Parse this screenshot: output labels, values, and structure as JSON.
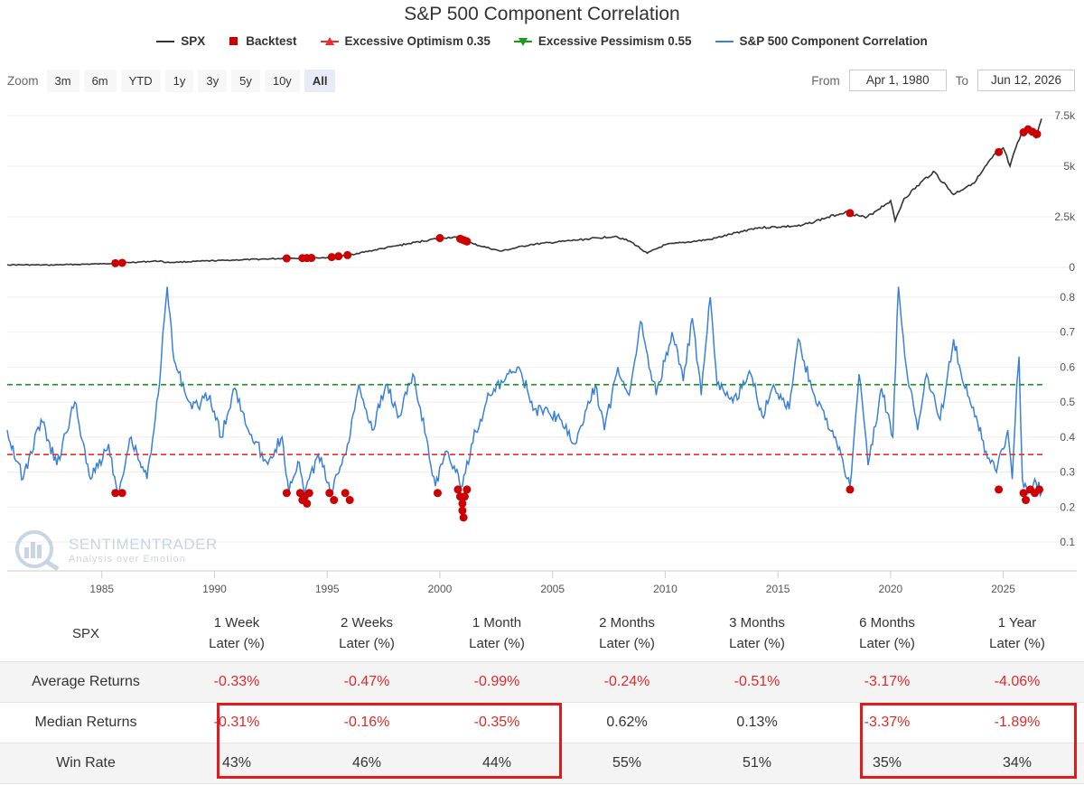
{
  "title": "S&P 500 Component Correlation",
  "legend": [
    {
      "label": "SPX",
      "color": "#333333",
      "symbol": "line"
    },
    {
      "label": "Backtest",
      "color": "#cc0000",
      "symbol": "square"
    },
    {
      "label": "Excessive Optimism 0.35",
      "color": "#ee2a2a",
      "symbol": "triangle-up"
    },
    {
      "label": "Excessive Pessimism 0.55",
      "color": "#1a9a1a",
      "symbol": "triangle-down"
    },
    {
      "label": "S&P 500 Component Correlation",
      "color": "#3a80d9",
      "symbol": "line"
    }
  ],
  "zoom": {
    "label": "Zoom",
    "buttons": [
      "3m",
      "6m",
      "YTD",
      "1y",
      "3y",
      "5y",
      "10y",
      "All"
    ],
    "active": "All"
  },
  "range": {
    "from_label": "From",
    "from_value": "Apr 1, 1980",
    "to_label": "To",
    "to_value": "Jun 12, 2026"
  },
  "watermark": {
    "name": "SENTIMENTRADER",
    "tagline": "Analysis over Emotion"
  },
  "chart_data": {
    "type": "line",
    "x_range": [
      1980.8,
      2026.9
    ],
    "x_ticks": [
      "1985",
      "1990",
      "1995",
      "2000",
      "2005",
      "2010",
      "2015",
      "2020",
      "2025"
    ],
    "spx_axis": {
      "range": [
        0,
        7500
      ],
      "ticks": [
        "0",
        "2.5k",
        "5k",
        "7.5k"
      ]
    },
    "corr_axis": {
      "range": [
        0.05,
        0.82
      ],
      "ticks": [
        "0.1",
        "0.2",
        "0.3",
        "0.4",
        "0.5",
        "0.6",
        "0.7",
        "0.8"
      ]
    },
    "optimism_threshold": 0.35,
    "pessimism_threshold": 0.55,
    "spx_series": [
      [
        1980.8,
        130
      ],
      [
        1982.6,
        115
      ],
      [
        1985.0,
        175
      ],
      [
        1987.6,
        320
      ],
      [
        1987.85,
        240
      ],
      [
        1990.5,
        350
      ],
      [
        1993.0,
        440
      ],
      [
        1995.0,
        480
      ],
      [
        1996.0,
        620
      ],
      [
        1998.0,
        1050
      ],
      [
        2000.0,
        1450
      ],
      [
        2000.7,
        1500
      ],
      [
        2001.5,
        1150
      ],
      [
        2002.7,
        800
      ],
      [
        2004.0,
        1120
      ],
      [
        2007.8,
        1540
      ],
      [
        2008.5,
        1250
      ],
      [
        2009.2,
        700
      ],
      [
        2010.0,
        1120
      ],
      [
        2012.0,
        1380
      ],
      [
        2014.0,
        1950
      ],
      [
        2016.0,
        2050
      ],
      [
        2018.0,
        2750
      ],
      [
        2018.9,
        2450
      ],
      [
        2020.0,
        3300
      ],
      [
        2020.2,
        2300
      ],
      [
        2020.6,
        3400
      ],
      [
        2021.9,
        4750
      ],
      [
        2022.8,
        3600
      ],
      [
        2023.8,
        4300
      ],
      [
        2024.5,
        5400
      ],
      [
        2025.0,
        5900
      ],
      [
        2025.3,
        5000
      ],
      [
        2025.8,
        6600
      ],
      [
        2026.2,
        6900
      ],
      [
        2026.45,
        6400
      ],
      [
        2026.7,
        7350
      ]
    ],
    "corr_series": [
      [
        1980.8,
        0.42
      ],
      [
        1981.5,
        0.28
      ],
      [
        1982.3,
        0.45
      ],
      [
        1983.0,
        0.32
      ],
      [
        1983.8,
        0.5
      ],
      [
        1984.5,
        0.28
      ],
      [
        1985.3,
        0.38
      ],
      [
        1985.7,
        0.24
      ],
      [
        1986.3,
        0.4
      ],
      [
        1987.0,
        0.28
      ],
      [
        1987.5,
        0.52
      ],
      [
        1987.9,
        0.83
      ],
      [
        1988.2,
        0.62
      ],
      [
        1989.0,
        0.48
      ],
      [
        1989.8,
        0.52
      ],
      [
        1990.3,
        0.4
      ],
      [
        1990.9,
        0.54
      ],
      [
        1991.5,
        0.42
      ],
      [
        1992.3,
        0.33
      ],
      [
        1993.0,
        0.4
      ],
      [
        1993.3,
        0.24
      ],
      [
        1993.7,
        0.33
      ],
      [
        1994.0,
        0.24
      ],
      [
        1994.6,
        0.35
      ],
      [
        1995.2,
        0.24
      ],
      [
        1995.9,
        0.38
      ],
      [
        1996.4,
        0.55
      ],
      [
        1997.0,
        0.42
      ],
      [
        1997.6,
        0.55
      ],
      [
        1998.2,
        0.46
      ],
      [
        1998.8,
        0.58
      ],
      [
        1999.4,
        0.4
      ],
      [
        1999.8,
        0.26
      ],
      [
        2000.3,
        0.36
      ],
      [
        2000.7,
        0.3
      ],
      [
        2001.0,
        0.26
      ],
      [
        2001.4,
        0.38
      ],
      [
        2002.2,
        0.52
      ],
      [
        2003.5,
        0.6
      ],
      [
        2004.2,
        0.48
      ],
      [
        2005.2,
        0.46
      ],
      [
        2006.0,
        0.38
      ],
      [
        2006.9,
        0.55
      ],
      [
        2007.3,
        0.42
      ],
      [
        2007.9,
        0.6
      ],
      [
        2008.4,
        0.52
      ],
      [
        2008.9,
        0.73
      ],
      [
        2009.6,
        0.52
      ],
      [
        2010.3,
        0.7
      ],
      [
        2010.8,
        0.56
      ],
      [
        2011.2,
        0.74
      ],
      [
        2011.6,
        0.52
      ],
      [
        2012.0,
        0.8
      ],
      [
        2012.3,
        0.55
      ],
      [
        2013.0,
        0.5
      ],
      [
        2013.8,
        0.58
      ],
      [
        2014.3,
        0.46
      ],
      [
        2014.8,
        0.55
      ],
      [
        2015.5,
        0.48
      ],
      [
        2015.9,
        0.68
      ],
      [
        2016.5,
        0.54
      ],
      [
        2017.3,
        0.42
      ],
      [
        2017.8,
        0.35
      ],
      [
        2018.2,
        0.26
      ],
      [
        2018.6,
        0.58
      ],
      [
        2019.0,
        0.32
      ],
      [
        2019.6,
        0.54
      ],
      [
        2020.1,
        0.4
      ],
      [
        2020.35,
        0.83
      ],
      [
        2020.7,
        0.6
      ],
      [
        2021.2,
        0.42
      ],
      [
        2021.6,
        0.58
      ],
      [
        2022.2,
        0.45
      ],
      [
        2022.8,
        0.68
      ],
      [
        2023.3,
        0.54
      ],
      [
        2023.8,
        0.46
      ],
      [
        2024.3,
        0.34
      ],
      [
        2024.7,
        0.3
      ],
      [
        2025.2,
        0.42
      ],
      [
        2025.4,
        0.28
      ],
      [
        2025.6,
        0.55
      ],
      [
        2025.7,
        0.63
      ],
      [
        2025.85,
        0.28
      ],
      [
        2026.1,
        0.24
      ],
      [
        2026.4,
        0.28
      ],
      [
        2026.7,
        0.24
      ]
    ],
    "backtest_dates": [
      1985.6,
      1985.9,
      1993.2,
      1993.9,
      1994.1,
      1994.3,
      1995.2,
      1995.5,
      1995.9,
      2000.0,
      2000.9,
      2001.0,
      2001.1,
      2001.2,
      2018.2,
      2024.8,
      2025.9,
      2026.1,
      2026.3,
      2026.5
    ],
    "backtest_corr": [
      [
        1985.6,
        0.24
      ],
      [
        1985.9,
        0.24
      ],
      [
        1993.2,
        0.24
      ],
      [
        1993.8,
        0.24
      ],
      [
        1993.9,
        0.22
      ],
      [
        1994.0,
        0.23
      ],
      [
        1994.1,
        0.21
      ],
      [
        1994.2,
        0.24
      ],
      [
        1995.1,
        0.24
      ],
      [
        1995.3,
        0.22
      ],
      [
        1995.8,
        0.24
      ],
      [
        1996.0,
        0.22
      ],
      [
        1999.9,
        0.24
      ],
      [
        2000.8,
        0.25
      ],
      [
        2000.9,
        0.23
      ],
      [
        2001.0,
        0.21
      ],
      [
        2001.0,
        0.19
      ],
      [
        2001.05,
        0.17
      ],
      [
        2001.1,
        0.23
      ],
      [
        2001.2,
        0.25
      ],
      [
        2018.2,
        0.25
      ],
      [
        2024.8,
        0.25
      ],
      [
        2025.9,
        0.24
      ],
      [
        2026.0,
        0.22
      ],
      [
        2026.2,
        0.25
      ],
      [
        2026.4,
        0.24
      ],
      [
        2026.6,
        0.25
      ]
    ]
  },
  "table": {
    "row_header": "SPX",
    "columns": [
      [
        "1 Week",
        "Later (%)"
      ],
      [
        "2 Weeks",
        "Later (%)"
      ],
      [
        "1 Month",
        "Later (%)"
      ],
      [
        "2 Months",
        "Later (%)"
      ],
      [
        "3 Months",
        "Later (%)"
      ],
      [
        "6 Months",
        "Later (%)"
      ],
      [
        "1 Year",
        "Later (%)"
      ]
    ],
    "rows": [
      {
        "label": "Average Returns",
        "values": [
          "-0.33%",
          "-0.47%",
          "-0.99%",
          "-0.24%",
          "-0.51%",
          "-3.17%",
          "-4.06%"
        ]
      },
      {
        "label": "Median Returns",
        "values": [
          "-0.31%",
          "-0.16%",
          "-0.35%",
          "0.62%",
          "0.13%",
          "-3.37%",
          "-1.89%"
        ]
      },
      {
        "label": "Win Rate",
        "values": [
          "43%",
          "46%",
          "44%",
          "55%",
          "51%",
          "35%",
          "34%"
        ]
      }
    ]
  }
}
